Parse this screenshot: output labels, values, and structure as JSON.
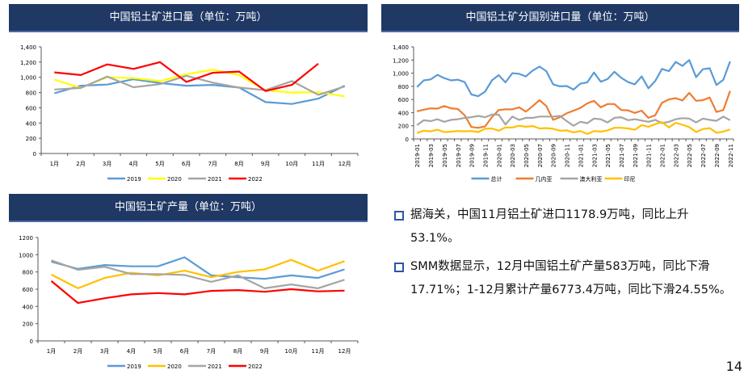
{
  "chart_data": [
    {
      "id": "imports_monthly",
      "type": "line",
      "title": "中国铝土矿进口量（单位：万吨）",
      "xlabel": "",
      "ylabel": "",
      "ylim": [
        0,
        1400
      ],
      "yticks": [
        0,
        200,
        400,
        600,
        800,
        1000,
        1200,
        1400
      ],
      "ytick_labels": [
        "0",
        "200",
        "400",
        "600",
        "800",
        "1,000",
        "1,200",
        "1,400"
      ],
      "categories": [
        "1月",
        "2月",
        "3月",
        "4月",
        "5月",
        "6月",
        "7月",
        "8月",
        "9月",
        "10月",
        "11月",
        "12月"
      ],
      "legend_position": "bottom",
      "grid": false,
      "series": [
        {
          "name": "2019",
          "color": "#5b9bd5",
          "values": [
            790,
            890,
            905,
            975,
            925,
            890,
            900,
            865,
            675,
            650,
            720,
            890
          ]
        },
        {
          "name": "2020",
          "color": "#ffff00",
          "values": [
            970,
            860,
            1000,
            990,
            950,
            1040,
            1100,
            1030,
            830,
            800,
            805,
            750
          ]
        },
        {
          "name": "2021",
          "color": "#a5a5a5",
          "values": [
            840,
            860,
            1010,
            870,
            910,
            1020,
            930,
            865,
            830,
            950,
            770,
            880
          ]
        },
        {
          "name": "2022",
          "color": "#ff0000",
          "values": [
            1065,
            1030,
            1170,
            1110,
            1200,
            940,
            1060,
            1075,
            820,
            900,
            1178.9,
            null
          ]
        }
      ]
    },
    {
      "id": "imports_by_country",
      "type": "line",
      "title": "中国铝土矿分国别进口量（单位：万吨）",
      "xlabel": "",
      "ylabel": "",
      "ylim": [
        0,
        1400
      ],
      "yticks": [
        0,
        200,
        400,
        600,
        800,
        1000,
        1200,
        1400
      ],
      "ytick_labels": [
        "0",
        "200",
        "400",
        "600",
        "800",
        "1,000",
        "1,200",
        "1,400"
      ],
      "x": [
        "2019-01",
        "2019-02",
        "2019-03",
        "2019-04",
        "2019-05",
        "2019-06",
        "2019-07",
        "2019-08",
        "2019-09",
        "2019-10",
        "2019-11",
        "2019-12",
        "2020-01",
        "2020-02",
        "2020-03",
        "2020-04",
        "2020-05",
        "2020-06",
        "2020-07",
        "2020-08",
        "2020-09",
        "2020-10",
        "2020-11",
        "2020-12",
        "2021-01",
        "2021-02",
        "2021-03",
        "2021-04",
        "2021-05",
        "2021-06",
        "2021-07",
        "2021-08",
        "2021-09",
        "2021-10",
        "2021-11",
        "2021-12",
        "2022-01",
        "2022-02",
        "2022-03",
        "2022-04",
        "2022-05",
        "2022-06",
        "2022-07",
        "2022-08",
        "2022-09",
        "2022-10",
        "2022-11"
      ],
      "xtick_labels": [
        "2019-01",
        "2019-03",
        "2019-05",
        "2019-07",
        "2019-09",
        "2019-11",
        "2020-01",
        "2020-03",
        "2020-05",
        "2020-07",
        "2020-09",
        "2020-11",
        "2021-01",
        "2021-03",
        "2021-05",
        "2021-07",
        "2021-09",
        "2021-11",
        "2022-01",
        "2022-03",
        "2022-05",
        "2022-07",
        "2022-09",
        "2022-11"
      ],
      "legend_position": "bottom",
      "grid": false,
      "series": [
        {
          "name": "总计",
          "color": "#5b9bd5",
          "values": [
            790,
            890,
            905,
            975,
            925,
            890,
            900,
            865,
            675,
            650,
            720,
            890,
            970,
            860,
            1000,
            990,
            950,
            1040,
            1100,
            1030,
            830,
            800,
            805,
            750,
            840,
            860,
            1010,
            870,
            910,
            1020,
            930,
            865,
            830,
            950,
            770,
            880,
            1065,
            1030,
            1170,
            1110,
            1200,
            940,
            1060,
            1075,
            820,
            900,
            1179
          ]
        },
        {
          "name": "几内亚",
          "color": "#ed7d31",
          "values": [
            420,
            445,
            465,
            460,
            500,
            465,
            455,
            360,
            180,
            170,
            190,
            330,
            440,
            450,
            450,
            480,
            415,
            500,
            590,
            500,
            290,
            330,
            390,
            430,
            470,
            540,
            580,
            480,
            530,
            530,
            440,
            435,
            395,
            430,
            320,
            360,
            550,
            600,
            620,
            585,
            700,
            580,
            590,
            630,
            410,
            440,
            730
          ]
        },
        {
          "name": "澳大利亚",
          "color": "#a5a5a5",
          "values": [
            210,
            285,
            270,
            300,
            260,
            290,
            300,
            320,
            330,
            350,
            330,
            370,
            370,
            220,
            340,
            290,
            320,
            320,
            340,
            340,
            340,
            350,
            270,
            200,
            260,
            240,
            310,
            300,
            250,
            320,
            330,
            285,
            300,
            280,
            260,
            290,
            240,
            260,
            300,
            315,
            310,
            250,
            310,
            290,
            275,
            340,
            285
          ]
        },
        {
          "name": "印尼",
          "color": "#ffc000",
          "values": [
            90,
            125,
            115,
            140,
            105,
            110,
            120,
            115,
            120,
            105,
            155,
            160,
            125,
            175,
            175,
            200,
            185,
            195,
            160,
            165,
            155,
            125,
            130,
            100,
            120,
            75,
            120,
            110,
            130,
            170,
            170,
            160,
            140,
            210,
            185,
            225,
            255,
            175,
            245,
            215,
            180,
            105,
            150,
            165,
            95,
            110,
            145
          ]
        }
      ]
    },
    {
      "id": "production_monthly",
      "type": "line",
      "title": "中国铝土矿产量（单位：万吨）",
      "xlabel": "",
      "ylabel": "",
      "ylim": [
        0,
        1200
      ],
      "yticks": [
        0,
        200,
        400,
        600,
        800,
        1000,
        1200
      ],
      "ytick_labels": [
        "0",
        "200",
        "400",
        "600",
        "800",
        "1000",
        "1200"
      ],
      "categories": [
        "1月",
        "2月",
        "3月",
        "4月",
        "5月",
        "6月",
        "7月",
        "8月",
        "9月",
        "10月",
        "11月",
        "12月"
      ],
      "legend_position": "bottom",
      "grid": false,
      "series": [
        {
          "name": "2019",
          "color": "#5b9bd5",
          "values": [
            920,
            835,
            880,
            865,
            865,
            970,
            760,
            740,
            720,
            760,
            730,
            830
          ]
        },
        {
          "name": "2020",
          "color": "#ffc000",
          "values": [
            770,
            610,
            730,
            790,
            760,
            815,
            740,
            800,
            830,
            940,
            815,
            925
          ]
        },
        {
          "name": "2021",
          "color": "#a5a5a5",
          "values": [
            935,
            825,
            860,
            775,
            775,
            765,
            685,
            760,
            610,
            655,
            610,
            710
          ]
        },
        {
          "name": "2022",
          "color": "#ff0000",
          "values": [
            695,
            440,
            495,
            540,
            555,
            540,
            580,
            590,
            570,
            600,
            575,
            583
          ]
        }
      ]
    }
  ],
  "text_block": {
    "bullets": [
      "据海关，中国11月铝土矿进口1178.9万吨，同比上升53.1%。",
      "SMM数据显示，12月中国铝土矿产量583万吨，同比下滑17.71%；1-12月累计产量6773.4万吨，同比下滑24.55%。"
    ]
  },
  "page_number": "14",
  "colors": {
    "header_bg": "#1f3864",
    "bullet_border": "#2e54a8"
  }
}
